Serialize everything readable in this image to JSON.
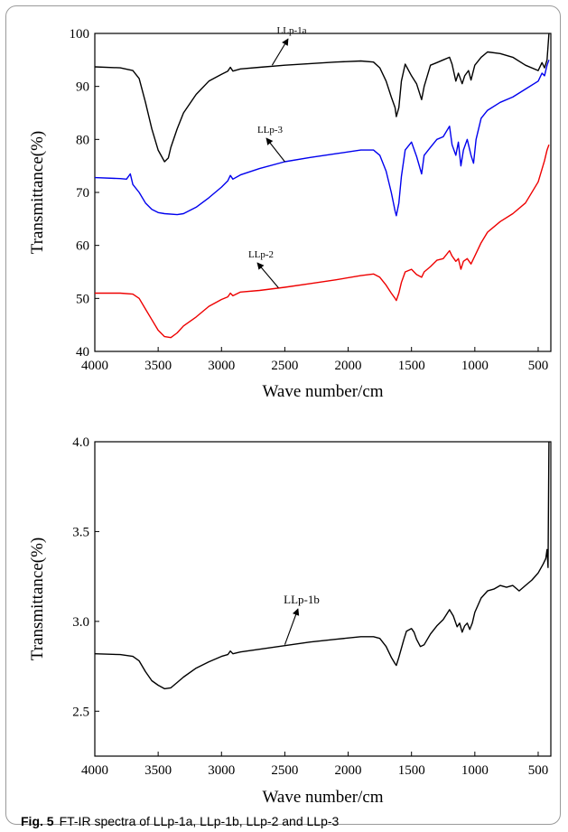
{
  "figure": {
    "label": "Fig. 5",
    "caption": "FT-IR spectra of LLp-1a, LLp-1b, LLp-2 and LLp-3"
  },
  "chart_data": [
    {
      "type": "line",
      "xlabel": "Wave number/cm",
      "ylabel": "Transmittance(%)",
      "xlim": [
        4000,
        400
      ],
      "ylim": [
        40,
        100
      ],
      "x_ticks": [
        4000,
        3500,
        3000,
        2500,
        2000,
        1500,
        1000,
        500
      ],
      "y_ticks": [
        40,
        50,
        60,
        70,
        80,
        90,
        100
      ],
      "grid": false,
      "legend": "none",
      "series": [
        {
          "name": "LLp-1a",
          "color": "#000000",
          "points": [
            [
              4000,
              93.7
            ],
            [
              3800,
              93.5
            ],
            [
              3700,
              93
            ],
            [
              3650,
              91.5
            ],
            [
              3600,
              87
            ],
            [
              3550,
              82
            ],
            [
              3500,
              78
            ],
            [
              3450,
              75.8
            ],
            [
              3420,
              76.5
            ],
            [
              3400,
              78.5
            ],
            [
              3350,
              82
            ],
            [
              3300,
              85
            ],
            [
              3200,
              88.5
            ],
            [
              3100,
              91
            ],
            [
              3000,
              92.3
            ],
            [
              2950,
              92.9
            ],
            [
              2930,
              93.6
            ],
            [
              2910,
              92.9
            ],
            [
              2850,
              93.3
            ],
            [
              2700,
              93.6
            ],
            [
              2500,
              94
            ],
            [
              2300,
              94.3
            ],
            [
              2100,
              94.6
            ],
            [
              1900,
              94.8
            ],
            [
              1800,
              94.6
            ],
            [
              1750,
              93.5
            ],
            [
              1700,
              91
            ],
            [
              1660,
              88
            ],
            [
              1630,
              86
            ],
            [
              1620,
              84.3
            ],
            [
              1600,
              86
            ],
            [
              1580,
              91
            ],
            [
              1550,
              94.2
            ],
            [
              1500,
              92
            ],
            [
              1460,
              90.5
            ],
            [
              1420,
              87.5
            ],
            [
              1400,
              90
            ],
            [
              1350,
              94
            ],
            [
              1300,
              94.5
            ],
            [
              1250,
              95
            ],
            [
              1200,
              95.5
            ],
            [
              1180,
              94.2
            ],
            [
              1150,
              91
            ],
            [
              1130,
              92.5
            ],
            [
              1100,
              90.5
            ],
            [
              1080,
              92
            ],
            [
              1050,
              93
            ],
            [
              1030,
              91.2
            ],
            [
              1000,
              94
            ],
            [
              950,
              95.5
            ],
            [
              900,
              96.5
            ],
            [
              800,
              96.2
            ],
            [
              700,
              95.5
            ],
            [
              600,
              94
            ],
            [
              500,
              93
            ],
            [
              470,
              94.5
            ],
            [
              450,
              93.5
            ],
            [
              430,
              95
            ],
            [
              415,
              100
            ]
          ]
        },
        {
          "name": "LLp-3",
          "color": "#0000ee",
          "points": [
            [
              4000,
              72.8
            ],
            [
              3800,
              72.6
            ],
            [
              3750,
              72.5
            ],
            [
              3720,
              73.5
            ],
            [
              3700,
              71.5
            ],
            [
              3650,
              70
            ],
            [
              3600,
              68
            ],
            [
              3550,
              66.8
            ],
            [
              3500,
              66.2
            ],
            [
              3450,
              66
            ],
            [
              3350,
              65.8
            ],
            [
              3300,
              66
            ],
            [
              3200,
              67.2
            ],
            [
              3100,
              69
            ],
            [
              3000,
              71
            ],
            [
              2950,
              72.2
            ],
            [
              2930,
              73.2
            ],
            [
              2910,
              72.5
            ],
            [
              2850,
              73.3
            ],
            [
              2700,
              74.5
            ],
            [
              2500,
              75.8
            ],
            [
              2300,
              76.6
            ],
            [
              2100,
              77.3
            ],
            [
              1900,
              78
            ],
            [
              1800,
              78
            ],
            [
              1750,
              77
            ],
            [
              1700,
              74
            ],
            [
              1660,
              70
            ],
            [
              1630,
              66.5
            ],
            [
              1620,
              65.6
            ],
            [
              1600,
              68
            ],
            [
              1580,
              73
            ],
            [
              1550,
              78
            ],
            [
              1500,
              79.5
            ],
            [
              1460,
              76.8
            ],
            [
              1420,
              73.5
            ],
            [
              1400,
              77
            ],
            [
              1350,
              78.5
            ],
            [
              1300,
              80
            ],
            [
              1250,
              80.5
            ],
            [
              1200,
              82.5
            ],
            [
              1180,
              79
            ],
            [
              1150,
              77
            ],
            [
              1130,
              79.5
            ],
            [
              1110,
              75
            ],
            [
              1090,
              78
            ],
            [
              1060,
              80
            ],
            [
              1030,
              77
            ],
            [
              1010,
              75.5
            ],
            [
              990,
              80
            ],
            [
              950,
              84
            ],
            [
              900,
              85.5
            ],
            [
              800,
              87
            ],
            [
              700,
              88
            ],
            [
              600,
              89.5
            ],
            [
              500,
              91
            ],
            [
              470,
              92.5
            ],
            [
              450,
              92
            ],
            [
              430,
              94
            ],
            [
              415,
              95
            ]
          ]
        },
        {
          "name": "LLp-2",
          "color": "#ee0000",
          "points": [
            [
              4000,
              51
            ],
            [
              3800,
              51
            ],
            [
              3700,
              50.8
            ],
            [
              3650,
              50
            ],
            [
              3600,
              48
            ],
            [
              3550,
              46
            ],
            [
              3500,
              44
            ],
            [
              3450,
              42.8
            ],
            [
              3400,
              42.6
            ],
            [
              3350,
              43.5
            ],
            [
              3300,
              44.8
            ],
            [
              3200,
              46.5
            ],
            [
              3100,
              48.5
            ],
            [
              3000,
              49.8
            ],
            [
              2950,
              50.3
            ],
            [
              2930,
              51
            ],
            [
              2910,
              50.5
            ],
            [
              2850,
              51.2
            ],
            [
              2700,
              51.5
            ],
            [
              2500,
              52.1
            ],
            [
              2300,
              52.8
            ],
            [
              2100,
              53.5
            ],
            [
              1900,
              54.3
            ],
            [
              1800,
              54.6
            ],
            [
              1750,
              54
            ],
            [
              1700,
              52.5
            ],
            [
              1660,
              51
            ],
            [
              1630,
              50
            ],
            [
              1620,
              49.6
            ],
            [
              1600,
              51
            ],
            [
              1580,
              53
            ],
            [
              1550,
              55
            ],
            [
              1500,
              55.5
            ],
            [
              1460,
              54.5
            ],
            [
              1420,
              54
            ],
            [
              1400,
              55
            ],
            [
              1350,
              56
            ],
            [
              1300,
              57.2
            ],
            [
              1250,
              57.5
            ],
            [
              1200,
              59
            ],
            [
              1180,
              58
            ],
            [
              1150,
              57
            ],
            [
              1130,
              57.5
            ],
            [
              1110,
              55.5
            ],
            [
              1090,
              57
            ],
            [
              1060,
              57.5
            ],
            [
              1030,
              56.5
            ],
            [
              1000,
              58
            ],
            [
              950,
              60.5
            ],
            [
              900,
              62.5
            ],
            [
              800,
              64.5
            ],
            [
              700,
              66
            ],
            [
              600,
              68
            ],
            [
              500,
              72
            ],
            [
              450,
              76
            ],
            [
              430,
              78
            ],
            [
              415,
              79
            ]
          ]
        }
      ],
      "annotations": [
        {
          "text": "LLp-1a",
          "target_x": 2600,
          "target_y": 94.0
        },
        {
          "text": "LLp-3",
          "target_x": 2500,
          "target_y": 75.8
        },
        {
          "text": "LLp-2",
          "target_x": 2550,
          "target_y": 52.0
        }
      ]
    },
    {
      "type": "line",
      "xlabel": "Wave number/cm",
      "ylabel": "Transmittance(%)",
      "xlim": [
        4000,
        400
      ],
      "ylim": [
        2.25,
        4.0
      ],
      "x_ticks": [
        4000,
        3500,
        3000,
        2500,
        2000,
        1500,
        1000,
        500
      ],
      "y_ticks": [
        2.5,
        3.0,
        3.5,
        4.0
      ],
      "grid": false,
      "legend": "none",
      "series": [
        {
          "name": "LLp-1b",
          "color": "#000000",
          "points": [
            [
              4000,
              2.82
            ],
            [
              3800,
              2.815
            ],
            [
              3700,
              2.805
            ],
            [
              3650,
              2.78
            ],
            [
              3600,
              2.72
            ],
            [
              3550,
              2.67
            ],
            [
              3500,
              2.645
            ],
            [
              3450,
              2.625
            ],
            [
              3400,
              2.63
            ],
            [
              3350,
              2.66
            ],
            [
              3300,
              2.69
            ],
            [
              3200,
              2.74
            ],
            [
              3100,
              2.775
            ],
            [
              3000,
              2.805
            ],
            [
              2950,
              2.815
            ],
            [
              2930,
              2.835
            ],
            [
              2910,
              2.82
            ],
            [
              2850,
              2.83
            ],
            [
              2700,
              2.845
            ],
            [
              2500,
              2.865
            ],
            [
              2300,
              2.885
            ],
            [
              2100,
              2.9
            ],
            [
              1900,
              2.915
            ],
            [
              1800,
              2.915
            ],
            [
              1750,
              2.905
            ],
            [
              1700,
              2.86
            ],
            [
              1660,
              2.8
            ],
            [
              1630,
              2.765
            ],
            [
              1620,
              2.755
            ],
            [
              1600,
              2.8
            ],
            [
              1560,
              2.9
            ],
            [
              1540,
              2.945
            ],
            [
              1500,
              2.96
            ],
            [
              1480,
              2.94
            ],
            [
              1460,
              2.9
            ],
            [
              1430,
              2.86
            ],
            [
              1400,
              2.87
            ],
            [
              1350,
              2.93
            ],
            [
              1300,
              2.975
            ],
            [
              1250,
              3.01
            ],
            [
              1200,
              3.065
            ],
            [
              1170,
              3.03
            ],
            [
              1140,
              2.97
            ],
            [
              1120,
              2.99
            ],
            [
              1100,
              2.94
            ],
            [
              1080,
              2.975
            ],
            [
              1060,
              2.99
            ],
            [
              1040,
              2.955
            ],
            [
              1020,
              2.99
            ],
            [
              1000,
              3.05
            ],
            [
              950,
              3.13
            ],
            [
              900,
              3.17
            ],
            [
              850,
              3.18
            ],
            [
              800,
              3.2
            ],
            [
              750,
              3.19
            ],
            [
              700,
              3.2
            ],
            [
              650,
              3.17
            ],
            [
              600,
              3.2
            ],
            [
              550,
              3.23
            ],
            [
              500,
              3.27
            ],
            [
              460,
              3.32
            ],
            [
              440,
              3.35
            ],
            [
              430,
              3.4
            ],
            [
              422,
              3.3
            ],
            [
              415,
              4.0
            ]
          ]
        }
      ],
      "annotations": [
        {
          "text": "LLp-1b",
          "target_x": 2500,
          "target_y": 2.87
        }
      ]
    }
  ]
}
